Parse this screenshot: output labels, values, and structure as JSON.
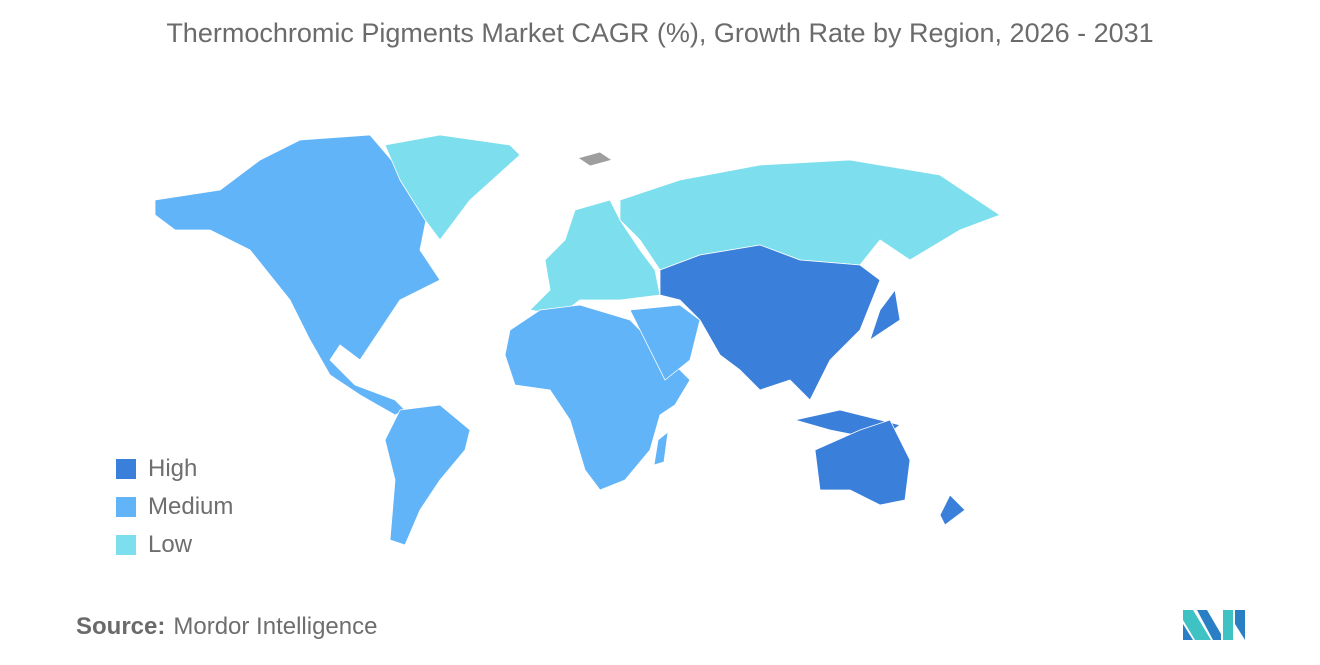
{
  "title": "Thermochromic Pigments Market CAGR (%), Growth Rate by Region, 2026 - 2031",
  "legend": [
    {
      "label": "High",
      "color": "#3a7fd9"
    },
    {
      "label": "Medium",
      "color": "#62b4f8"
    },
    {
      "label": "Low",
      "color": "#7ddfee"
    }
  ],
  "regions": {
    "north_america": "Medium",
    "south_america": "Medium",
    "africa": "Medium",
    "middle_east": "Medium",
    "europe": "Low",
    "russia": "Low",
    "greenland": "Low",
    "asia": "High",
    "australia_oceania": "High"
  },
  "source": {
    "label": "Source:",
    "value": "Mordor Intelligence"
  },
  "colors": {
    "no_data": "#9e9e9e",
    "logo_dark": "#2a7fc4",
    "logo_light": "#3fc2c4"
  }
}
